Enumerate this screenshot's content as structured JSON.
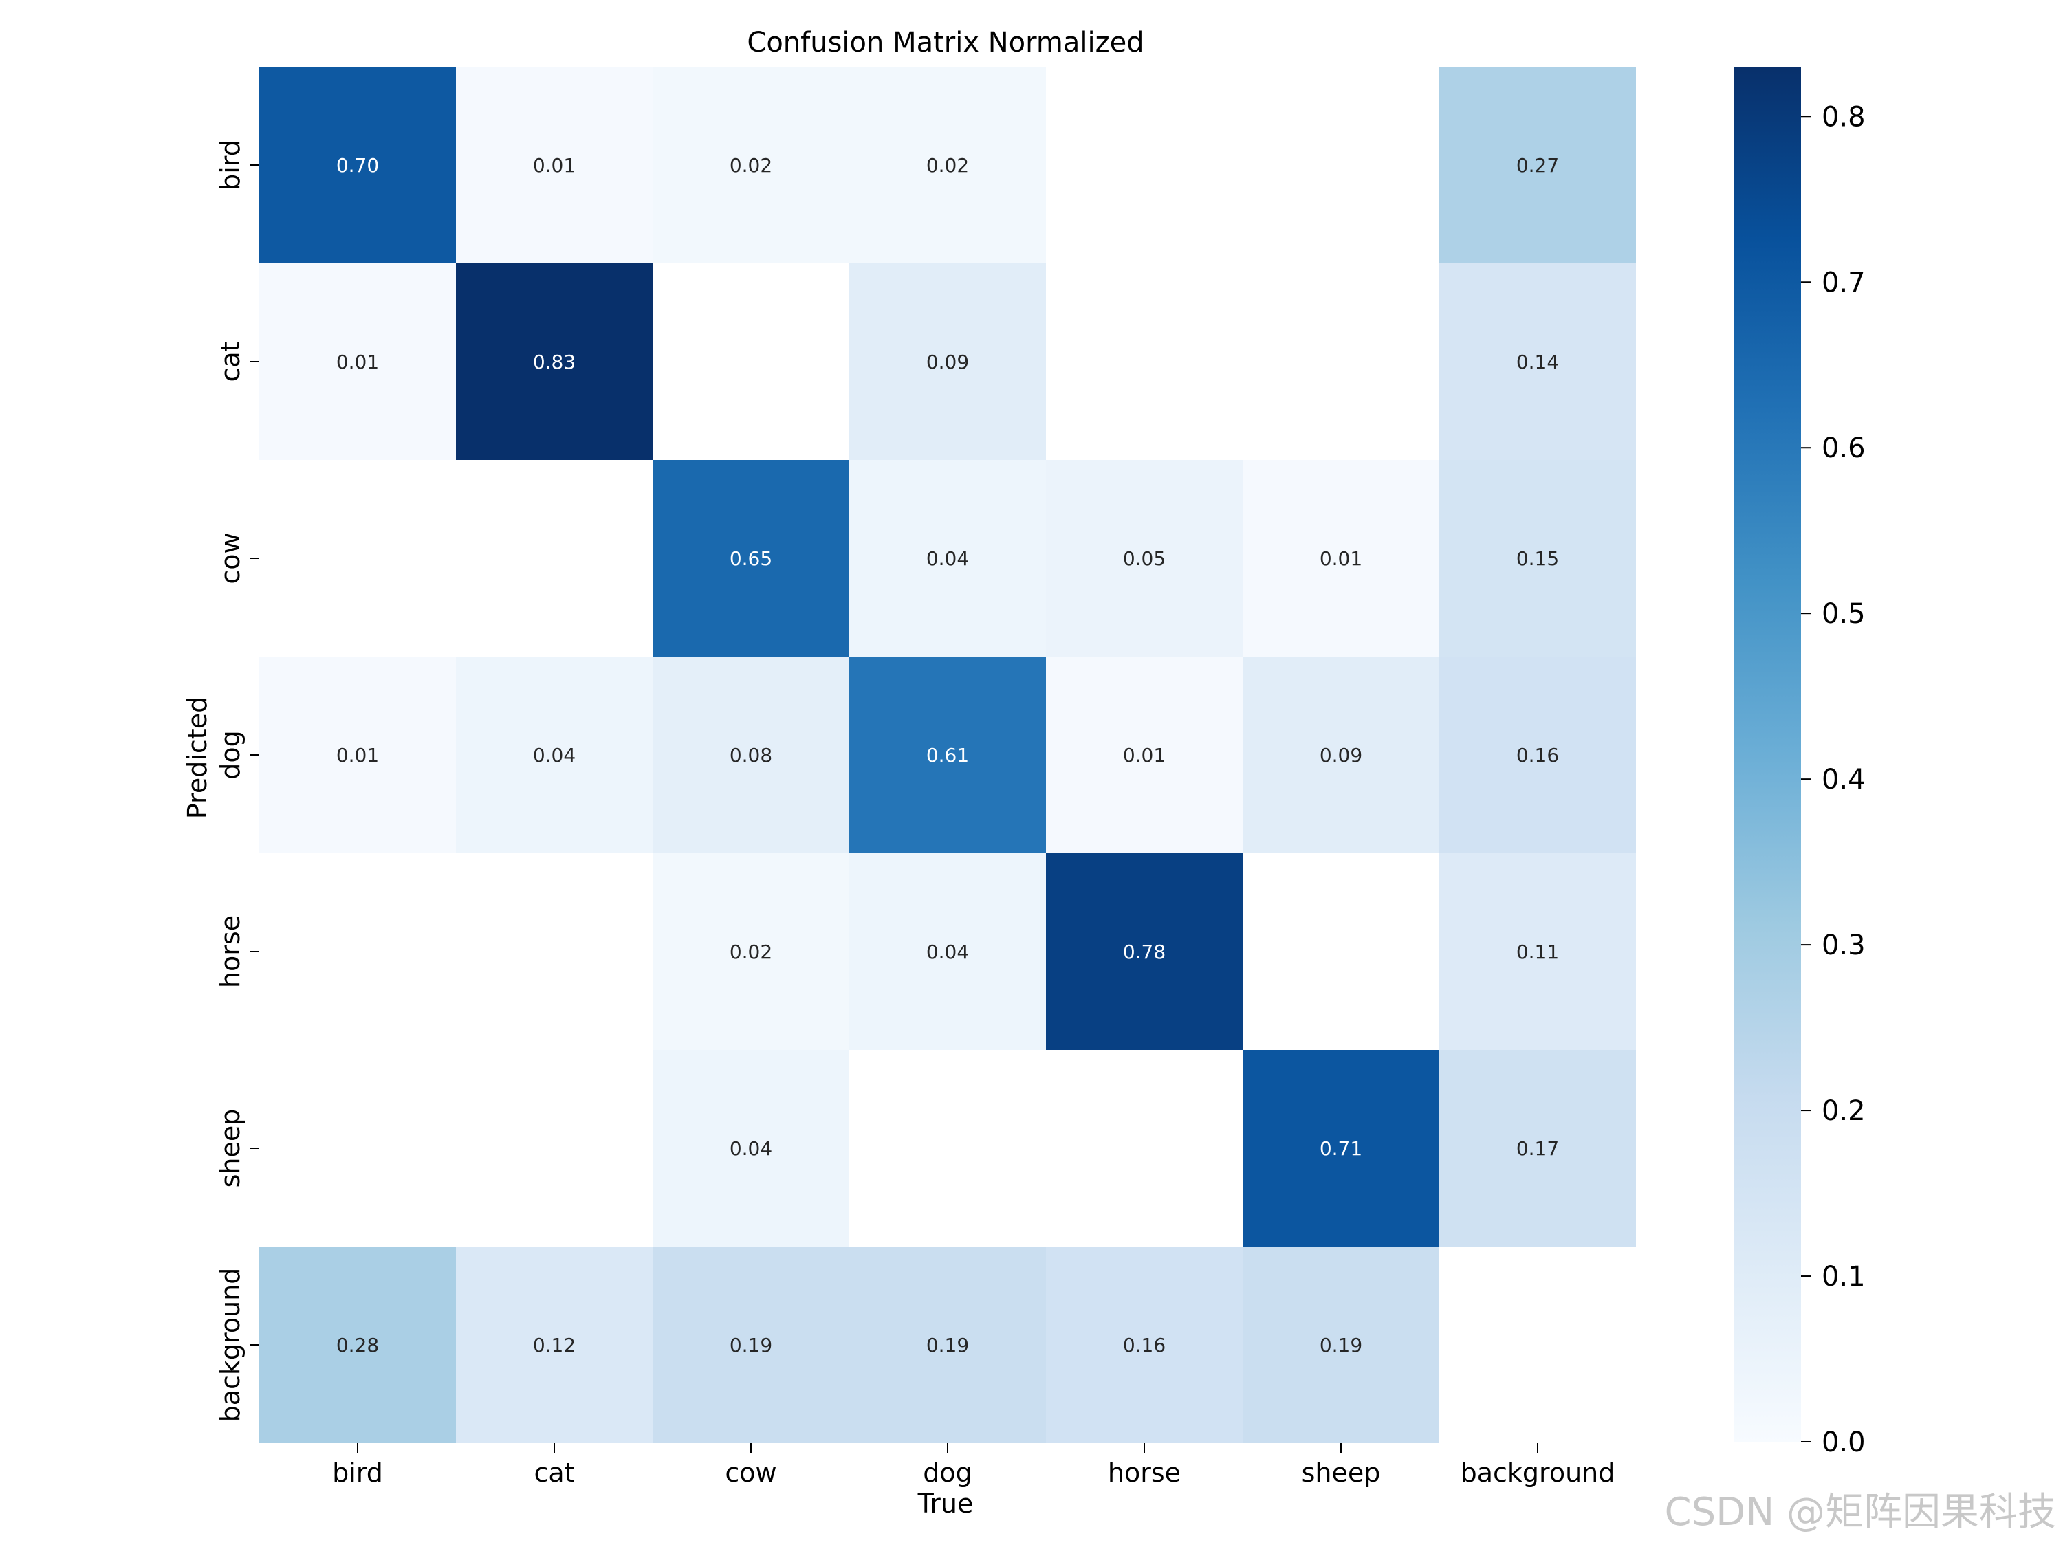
{
  "chart_data": {
    "type": "heatmap",
    "title": "Confusion Matrix Normalized",
    "xlabel": "True",
    "ylabel": "Predicted",
    "x_categories": [
      "bird",
      "cat",
      "cow",
      "dog",
      "horse",
      "sheep",
      "background"
    ],
    "y_categories": [
      "bird",
      "cat",
      "cow",
      "dog",
      "horse",
      "sheep",
      "background"
    ],
    "values": [
      [
        0.7,
        0.01,
        0.02,
        0.02,
        null,
        null,
        0.27
      ],
      [
        0.01,
        0.83,
        null,
        0.09,
        null,
        null,
        0.14
      ],
      [
        null,
        null,
        0.65,
        0.04,
        0.05,
        0.01,
        0.15
      ],
      [
        0.01,
        0.04,
        0.08,
        0.61,
        0.01,
        0.09,
        0.16
      ],
      [
        null,
        null,
        0.02,
        0.04,
        0.78,
        null,
        0.11
      ],
      [
        null,
        null,
        0.04,
        null,
        null,
        0.71,
        0.17
      ],
      [
        0.28,
        0.12,
        0.19,
        0.19,
        0.16,
        0.19,
        null
      ]
    ],
    "value_labels": [
      [
        "0.70",
        "0.01",
        "0.02",
        "0.02",
        "",
        "",
        "0.27"
      ],
      [
        "0.01",
        "0.83",
        "",
        "0.09",
        "",
        "",
        "0.14"
      ],
      [
        "",
        "",
        "0.65",
        "0.04",
        "0.05",
        "0.01",
        "0.15"
      ],
      [
        "0.01",
        "0.04",
        "0.08",
        "0.61",
        "0.01",
        "0.09",
        "0.16"
      ],
      [
        "",
        "",
        "0.02",
        "0.04",
        "0.78",
        "",
        "0.11"
      ],
      [
        "",
        "",
        "0.04",
        "",
        "",
        "0.71",
        "0.17"
      ],
      [
        "0.28",
        "0.12",
        "0.19",
        "0.19",
        "0.16",
        "0.19",
        ""
      ]
    ],
    "colormap": "Blues",
    "colorbar": {
      "range": [
        0.0,
        0.83
      ],
      "ticks": [
        0.0,
        0.1,
        0.2,
        0.3,
        0.4,
        0.5,
        0.6,
        0.7,
        0.8
      ],
      "tick_labels": [
        "0.0",
        "0.1",
        "0.2",
        "0.3",
        "0.4",
        "0.5",
        "0.6",
        "0.7",
        "0.8"
      ]
    },
    "grid": false,
    "legend": "colorbar-right"
  },
  "watermark": "CSDN @矩阵因果科技"
}
